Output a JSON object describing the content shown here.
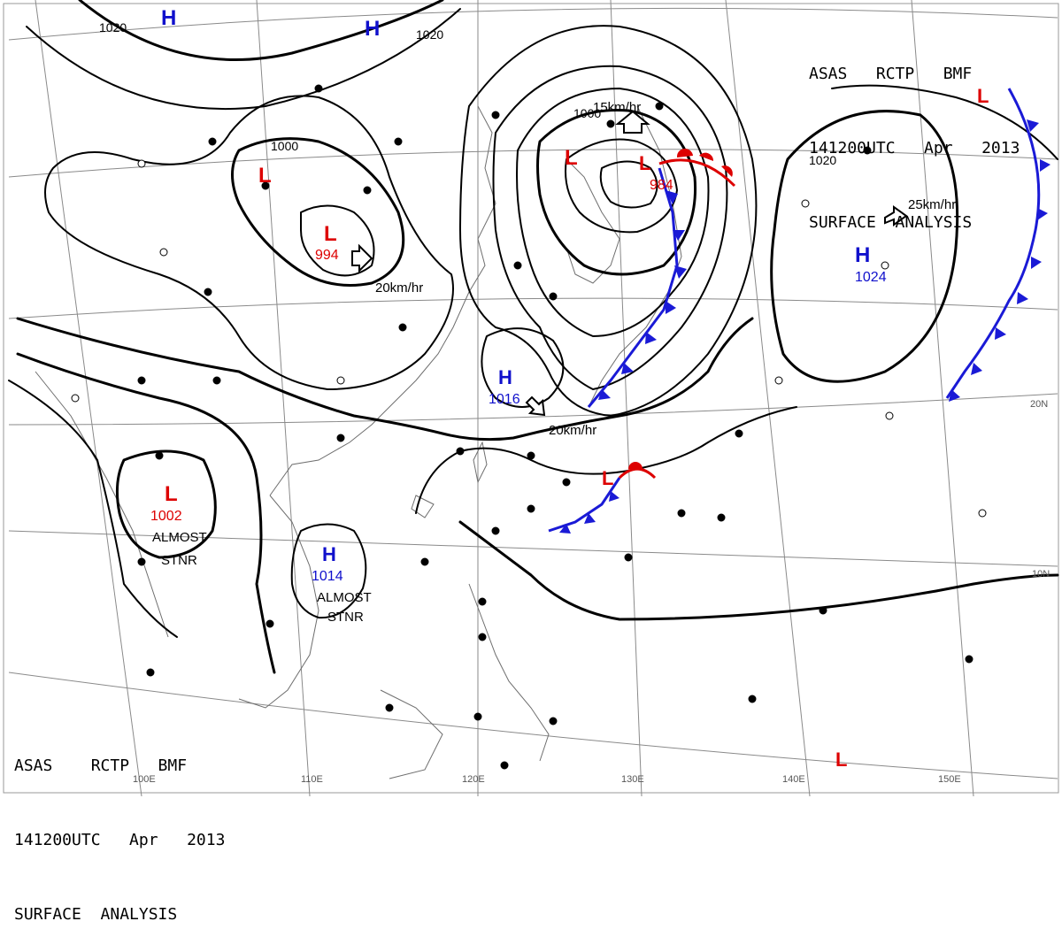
{
  "header_top": {
    "line1": "ASAS   RCTP   BMF",
    "line2": "141200UTC   Apr   2013",
    "line3": "SURFACE  ANALYSIS"
  },
  "header_bottom": {
    "line1": "ASAS    RCTP   BMF",
    "line2": "141200UTC   Apr   2013",
    "line3": "SURFACE  ANALYSIS"
  },
  "colors": {
    "high": "#1010cc",
    "low": "#dd0000",
    "isobar": "#000000",
    "grid": "#888888",
    "coast": "#707070",
    "cold_front": "#1a1ad6",
    "warm_front": "#dd0000"
  },
  "pressure_centers": [
    {
      "id": "h-nw-1",
      "type": "H",
      "label": "H",
      "value": ""
    },
    {
      "id": "h-nw-2",
      "type": "H",
      "label": "H",
      "value": ""
    },
    {
      "id": "l-mongolia",
      "type": "L",
      "label": "L",
      "value": ""
    },
    {
      "id": "l-994",
      "type": "L",
      "label": "L",
      "value": "994"
    },
    {
      "id": "l-japan-sea",
      "type": "L",
      "label": "L",
      "value": ""
    },
    {
      "id": "l-984",
      "type": "L",
      "label": "L",
      "value": "984"
    },
    {
      "id": "h-1024",
      "type": "H",
      "label": "H",
      "value": "1024"
    },
    {
      "id": "l-ne",
      "type": "L",
      "label": "L",
      "value": ""
    },
    {
      "id": "h-1016",
      "type": "H",
      "label": "H",
      "value": "1016"
    },
    {
      "id": "l-1002",
      "type": "L",
      "label": "L",
      "value": "1002"
    },
    {
      "id": "h-1014",
      "type": "H",
      "label": "H",
      "value": "1014"
    },
    {
      "id": "l-south-pac",
      "type": "L",
      "label": "L",
      "value": ""
    },
    {
      "id": "l-okinawa",
      "type": "L",
      "label": "L",
      "value": ""
    }
  ],
  "isobar_labels": [
    "1020",
    "1020",
    "1000",
    "1000",
    "1020"
  ],
  "motion_labels": [
    "20km/hr",
    "15km/hr",
    "25km/hr",
    "20km/hr"
  ],
  "notes": [
    "ALMOST",
    "STNR",
    "ALMOST",
    "STNR"
  ],
  "longitude_labels": [
    "100E",
    "110E",
    "120E",
    "130E",
    "140E",
    "150E"
  ],
  "latitude_labels": [
    "20N",
    "10N"
  ]
}
